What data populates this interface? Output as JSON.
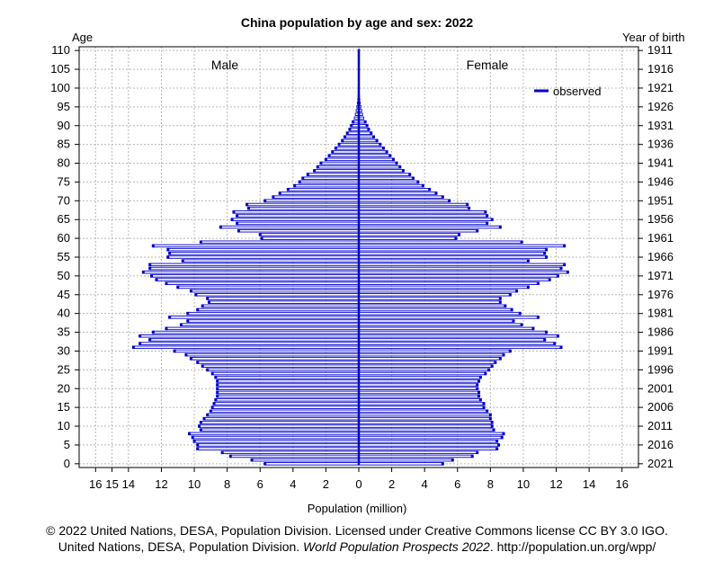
{
  "chart_data": {
    "type": "bar",
    "title": "China population by age and sex: 2022",
    "xlabel": "Population (million)",
    "y_left_title": "Age",
    "y_right_title": "Year of birth",
    "left_group_label": "Male",
    "right_group_label": "Female",
    "legend": {
      "label": "observed",
      "position": "top-right",
      "color": "#0000cc"
    },
    "grid": true,
    "xlim": [
      -17,
      17
    ],
    "ylim": [
      -1,
      111
    ],
    "x_ticks": [
      -16,
      -15,
      -14,
      -12,
      -10,
      -8,
      -6,
      -4,
      -2,
      0,
      2,
      4,
      6,
      8,
      10,
      12,
      14,
      16
    ],
    "x_tick_labels": [
      "16",
      "15",
      "14",
      "12",
      "10",
      "8",
      "6",
      "4",
      "2",
      "0",
      "2",
      "4",
      "6",
      "8",
      "10",
      "12",
      "14",
      "16"
    ],
    "y_ticks": [
      0,
      5,
      10,
      15,
      20,
      25,
      30,
      35,
      40,
      45,
      50,
      55,
      60,
      65,
      70,
      75,
      80,
      85,
      90,
      95,
      100,
      105,
      110
    ],
    "year_ticks": [
      "2021",
      "2016",
      "2011",
      "2006",
      "2001",
      "1996",
      "1991",
      "1986",
      "1981",
      "1976",
      "1971",
      "1966",
      "1961",
      "1956",
      "1951",
      "1946",
      "1941",
      "1936",
      "1931",
      "1926",
      "1921",
      "1916",
      "1911"
    ],
    "ages": [
      0,
      1,
      2,
      3,
      4,
      5,
      6,
      7,
      8,
      9,
      10,
      11,
      12,
      13,
      14,
      15,
      16,
      17,
      18,
      19,
      20,
      21,
      22,
      23,
      24,
      25,
      26,
      27,
      28,
      29,
      30,
      31,
      32,
      33,
      34,
      35,
      36,
      37,
      38,
      39,
      40,
      41,
      42,
      43,
      44,
      45,
      46,
      47,
      48,
      49,
      50,
      51,
      52,
      53,
      54,
      55,
      56,
      57,
      58,
      59,
      60,
      61,
      62,
      63,
      64,
      65,
      66,
      67,
      68,
      69,
      70,
      71,
      72,
      73,
      74,
      75,
      76,
      77,
      78,
      79,
      80,
      81,
      82,
      83,
      84,
      85,
      86,
      87,
      88,
      89,
      90,
      91,
      92,
      93,
      94,
      95,
      96,
      97,
      98,
      99,
      100,
      101,
      102,
      103,
      104,
      105,
      106,
      107,
      108,
      109,
      110
    ],
    "series": [
      {
        "name": "Male",
        "values": [
          5.7,
          6.5,
          7.8,
          8.3,
          9.8,
          9.8,
          10.0,
          10.1,
          10.3,
          9.6,
          9.7,
          9.6,
          9.4,
          9.2,
          9.0,
          8.9,
          8.8,
          8.7,
          8.6,
          8.6,
          8.6,
          8.6,
          8.6,
          8.7,
          8.9,
          9.2,
          9.5,
          9.8,
          10.2,
          10.5,
          11.2,
          13.7,
          13.3,
          12.7,
          13.3,
          12.5,
          11.7,
          10.8,
          10.4,
          11.5,
          10.4,
          9.8,
          9.5,
          9.1,
          9.2,
          9.9,
          10.2,
          11.0,
          11.7,
          12.3,
          12.6,
          13.1,
          12.7,
          12.7,
          10.7,
          11.6,
          11.5,
          11.6,
          12.5,
          9.6,
          5.9,
          6.0,
          7.3,
          8.4,
          7.4,
          7.7,
          7.4,
          7.6,
          6.7,
          6.8,
          5.7,
          5.2,
          4.8,
          4.3,
          3.9,
          3.6,
          3.4,
          3.1,
          2.7,
          2.5,
          2.3,
          2.0,
          1.8,
          1.6,
          1.4,
          1.2,
          1.0,
          0.85,
          0.7,
          0.55,
          0.45,
          0.35,
          0.27,
          0.21,
          0.16,
          0.12,
          0.09,
          0.06,
          0.04,
          0.03,
          0.02,
          0.01,
          0.01,
          0.01,
          0,
          0,
          0,
          0,
          0,
          0,
          0
        ]
      },
      {
        "name": "Female",
        "values": [
          5.1,
          5.7,
          6.9,
          7.2,
          8.4,
          8.5,
          8.4,
          8.7,
          8.8,
          8.2,
          8.1,
          8.1,
          8.0,
          8.0,
          7.8,
          7.6,
          7.6,
          7.4,
          7.3,
          7.3,
          7.2,
          7.2,
          7.3,
          7.4,
          7.7,
          7.9,
          8.1,
          8.3,
          8.6,
          8.8,
          9.2,
          12.3,
          11.9,
          11.3,
          12.1,
          11.4,
          10.6,
          9.9,
          9.4,
          10.9,
          9.8,
          9.3,
          8.9,
          8.6,
          8.6,
          9.2,
          9.6,
          10.3,
          10.9,
          11.6,
          12.1,
          12.7,
          12.3,
          12.5,
          10.3,
          11.4,
          11.3,
          11.4,
          12.5,
          9.9,
          5.9,
          6.1,
          7.2,
          8.6,
          7.8,
          8.1,
          7.8,
          7.7,
          6.7,
          6.6,
          5.5,
          5.1,
          4.7,
          4.3,
          3.9,
          3.6,
          3.3,
          3.1,
          2.7,
          2.5,
          2.3,
          2.1,
          1.9,
          1.7,
          1.5,
          1.3,
          1.1,
          0.9,
          0.75,
          0.6,
          0.5,
          0.39,
          0.3,
          0.23,
          0.18,
          0.13,
          0.09,
          0.06,
          0.04,
          0.03,
          0.02,
          0.01,
          0.01,
          0.01,
          0,
          0,
          0,
          0,
          0,
          0,
          0
        ]
      }
    ]
  },
  "footer": {
    "line1": "© 2022 United Nations, DESA, Population Division. Licensed under Creative Commons license CC BY 3.0 IGO.",
    "line2_plain": "United Nations, DESA, Population Division. ",
    "line2_italic": "World Population Prospects 2022",
    "line2_tail": ". http://population.un.org/wpp/"
  }
}
